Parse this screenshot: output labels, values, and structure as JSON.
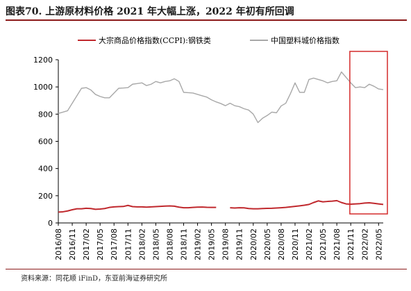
{
  "header": {
    "title": "图表70. 上游原材料价格 2021 年大幅上涨，2022 年初有所回调"
  },
  "footer": {
    "source": "资料来源：同花顺 iFinD，东亚前海证券研究所"
  },
  "colors": {
    "ccpi": "#c0282d",
    "plastic": "#a8a8a8",
    "highlight_box": "#d42a2a",
    "rule": "#8b1a1a"
  },
  "chart_data": {
    "type": "line",
    "title": "",
    "xlabel": "",
    "ylabel": "",
    "ylim": [
      0,
      1200
    ],
    "yticks": [
      0,
      200,
      400,
      600,
      800,
      1000,
      1200
    ],
    "grid": false,
    "legend_position": "top",
    "x": [
      "2016/08",
      "2016/09",
      "2016/10",
      "2016/11",
      "2016/12",
      "2017/01",
      "2017/02",
      "2017/03",
      "2017/04",
      "2017/05",
      "2017/06",
      "2017/07",
      "2017/08",
      "2017/09",
      "2017/10",
      "2017/11",
      "2017/12",
      "2018/01",
      "2018/02",
      "2018/03",
      "2018/04",
      "2018/05",
      "2018/06",
      "2018/07",
      "2018/08",
      "2018/09",
      "2018/10",
      "2018/11",
      "2018/12",
      "2019/01",
      "2019/02",
      "2019/03",
      "2019/04",
      "2019/05",
      "2019/06",
      "2019/07",
      "2019/08",
      "2019/09",
      "2019/10",
      "2019/11",
      "2019/12",
      "2020/01",
      "2020/02",
      "2020/03",
      "2020/04",
      "2020/05",
      "2020/06",
      "2020/07",
      "2020/08",
      "2020/09",
      "2020/10",
      "2020/11",
      "2020/12",
      "2021/01",
      "2021/02",
      "2021/03",
      "2021/04",
      "2021/05",
      "2021/06",
      "2021/07",
      "2021/08",
      "2021/09",
      "2021/10",
      "2021/11",
      "2021/12",
      "2022/01",
      "2022/02",
      "2022/03",
      "2022/04",
      "2022/05",
      "2022/06"
    ],
    "xtick_labels": [
      "2016/08",
      "2016/11",
      "2017/02",
      "2017/05",
      "2017/08",
      "2017/11",
      "2018/02",
      "2018/05",
      "2018/08",
      "2018/11",
      "2019/02",
      "2019/05",
      "2019/08",
      "2019/11",
      "2020/02",
      "2020/05",
      "2020/08",
      "2020/11",
      "2021/02",
      "2021/05",
      "2021/08",
      "2021/11",
      "2022/02",
      "2022/05"
    ],
    "series": [
      {
        "name": "大宗商品价格指数(CCPI):钢铁类",
        "color": "#c0282d",
        "values": [
          80,
          82,
          88,
          97,
          104,
          104,
          108,
          106,
          100,
          102,
          106,
          114,
          118,
          120,
          121,
          129,
          120,
          118,
          118,
          116,
          118,
          120,
          122,
          124,
          125,
          123,
          116,
          112,
          112,
          114,
          116,
          117,
          115,
          114,
          114,
          null,
          null,
          112,
          110,
          112,
          111,
          106,
          104,
          104,
          106,
          107,
          108,
          110,
          112,
          114,
          118,
          122,
          126,
          130,
          136,
          150,
          162,
          155,
          158,
          160,
          164,
          150,
          140,
          138,
          140,
          142,
          146,
          148,
          144,
          140,
          136
        ]
      },
      {
        "name": "中国塑料城价格指数",
        "color": "#a8a8a8",
        "values": [
          805,
          815,
          825,
          880,
          935,
          990,
          995,
          978,
          945,
          930,
          920,
          920,
          955,
          990,
          992,
          995,
          1020,
          1025,
          1030,
          1010,
          1020,
          1040,
          1030,
          1040,
          1045,
          1060,
          1040,
          960,
          958,
          955,
          945,
          935,
          925,
          905,
          890,
          878,
          862,
          880,
          862,
          855,
          840,
          830,
          800,
          738,
          770,
          790,
          815,
          810,
          860,
          880,
          950,
          1030,
          960,
          960,
          1055,
          1065,
          1055,
          1045,
          1030,
          1040,
          1045,
          1110,
          1070,
          1030,
          995,
          1000,
          995,
          1020,
          1005,
          985,
          980
        ]
      }
    ],
    "highlight": {
      "x_start": "2021/12",
      "x_end": "2022/06",
      "shape": "rectangle"
    }
  }
}
